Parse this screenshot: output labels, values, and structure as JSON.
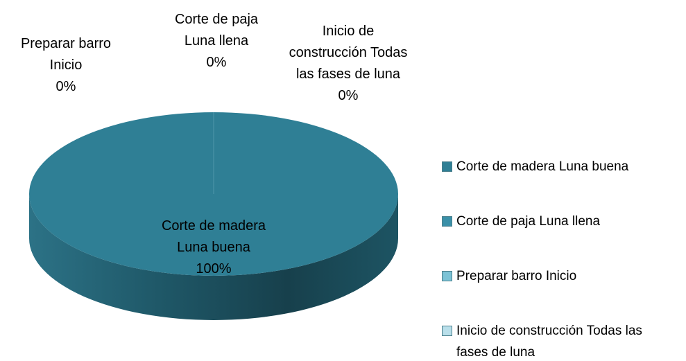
{
  "chart_data": {
    "type": "pie",
    "categories": [
      "Corte de madera Luna buena",
      "Corte de paja Luna llena",
      "Preparar barro Inicio",
      "Inicio de construcción Todas las fases de luna"
    ],
    "values": [
      100,
      0,
      0,
      0
    ],
    "value_labels": [
      "100%",
      "0%",
      "0%",
      "0%"
    ],
    "colors": [
      "#2f7f95",
      "#3a90a8",
      "#7cc3d6",
      "#b9dfea"
    ],
    "legend": "right"
  }
}
